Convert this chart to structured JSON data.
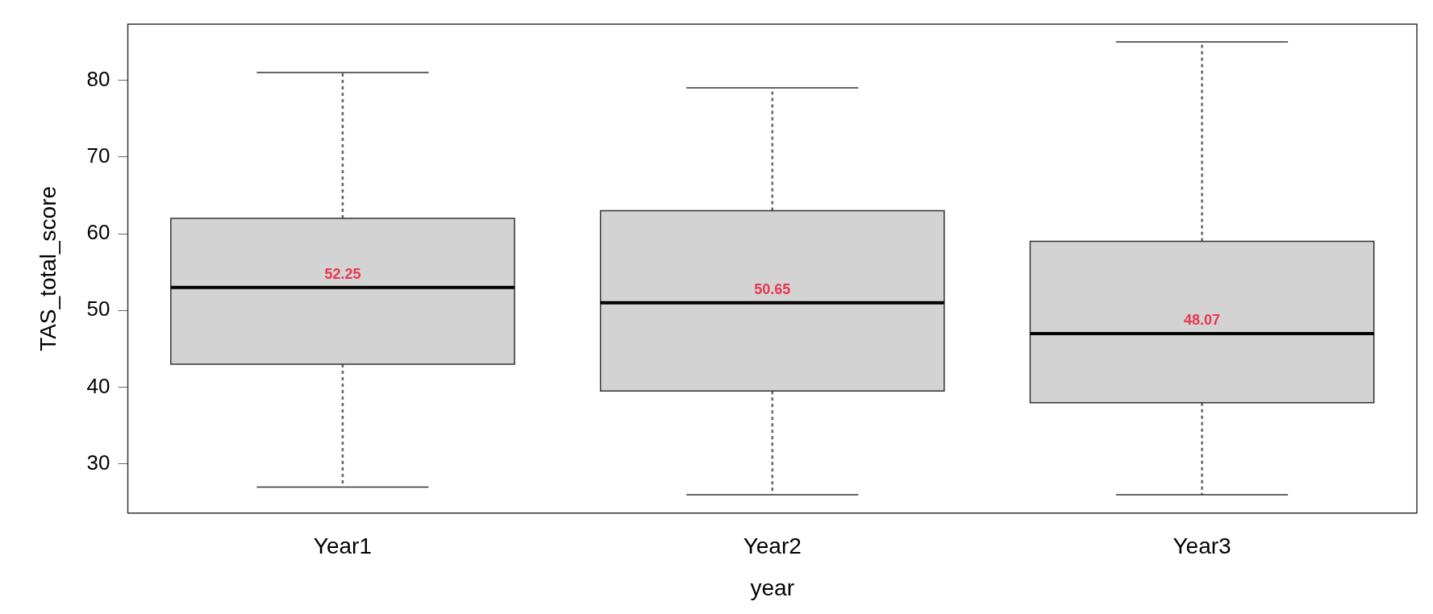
{
  "chart_data": {
    "type": "box",
    "xlabel": "year",
    "ylabel": "TAS_total_score",
    "categories": [
      "Year1",
      "Year2",
      "Year3"
    ],
    "boxes": [
      {
        "low": 27,
        "q1": 43,
        "median": 53,
        "q3": 62,
        "high": 81
      },
      {
        "low": 26,
        "q1": 39.5,
        "median": 51,
        "q3": 63,
        "high": 79
      },
      {
        "low": 26,
        "q1": 38,
        "median": 47,
        "q3": 59,
        "high": 85
      }
    ],
    "color": "#d3d3d3",
    "ylim": [
      23.6,
      87.3
    ],
    "yticks": [
      30,
      40,
      50,
      60,
      70,
      80
    ],
    "grid": false,
    "annotations": [
      "52.25",
      "50.65",
      "48.07"
    ]
  }
}
